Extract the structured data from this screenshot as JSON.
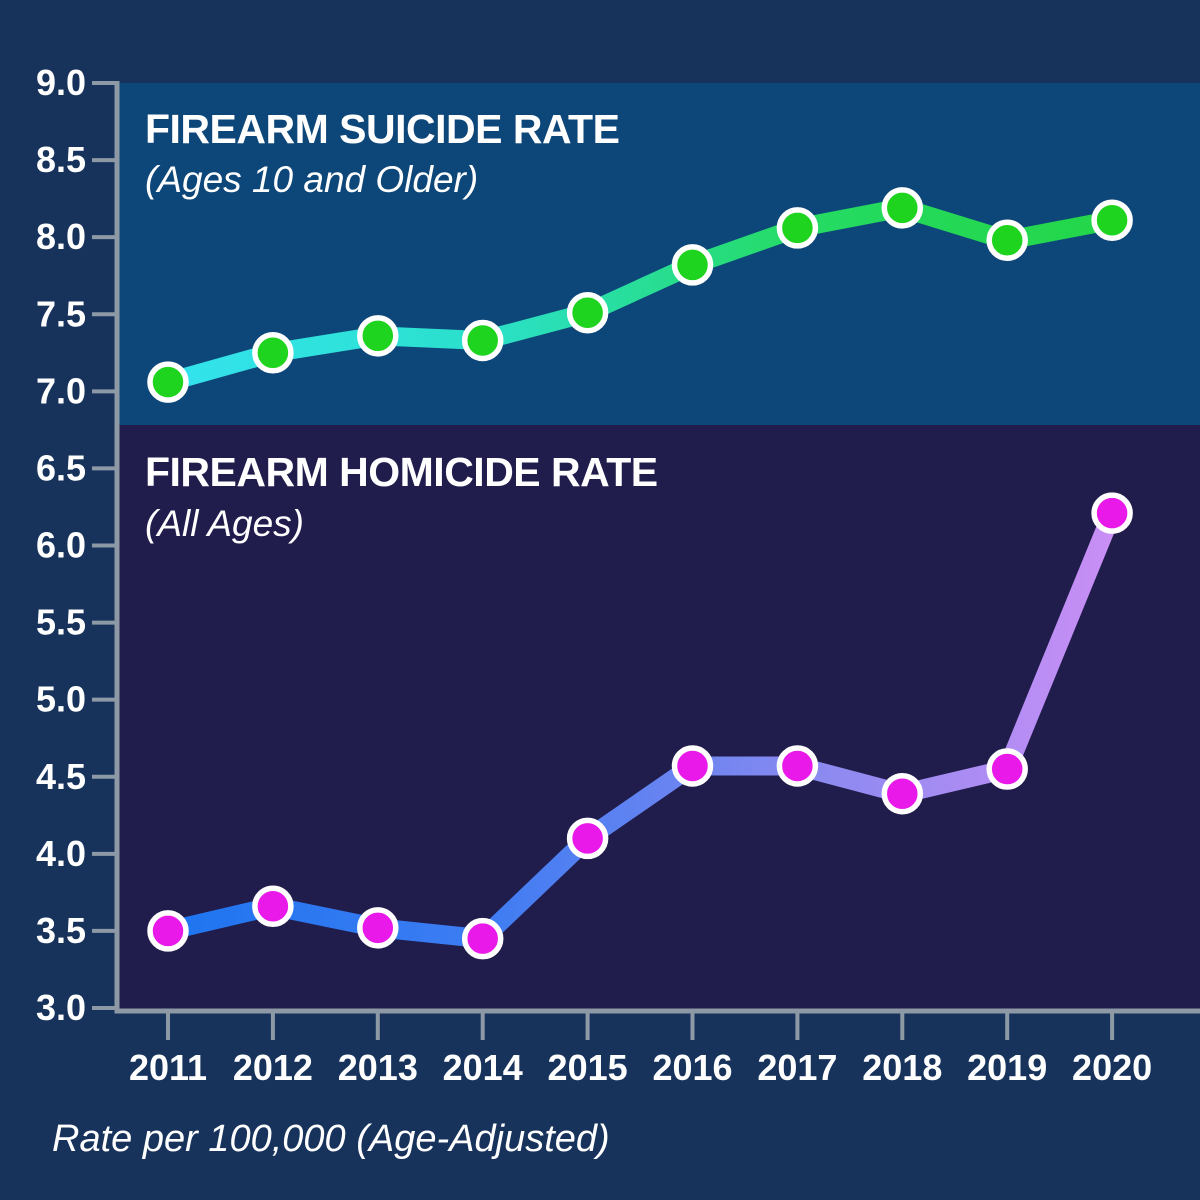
{
  "background_color": "#17335C",
  "chart_data": {
    "type": "line",
    "categories": [
      "2011",
      "2012",
      "2013",
      "2014",
      "2015",
      "2016",
      "2017",
      "2018",
      "2019",
      "2020"
    ],
    "series": [
      {
        "name": "FIREARM SUICIDE RATE",
        "subtitle": "(Ages 10 and Older)",
        "values": [
          7.06,
          7.25,
          7.36,
          7.33,
          7.51,
          7.82,
          8.06,
          8.19,
          7.98,
          8.11
        ],
        "marker_color": "#1ED41E",
        "line_gradient": [
          "#33E3EE",
          "#2BE0CB",
          "#25DB64",
          "#23D648"
        ],
        "panel_color": "#0D4678"
      },
      {
        "name": "FIREARM HOMICIDE RATE",
        "subtitle": "(All Ages)",
        "values": [
          3.5,
          3.66,
          3.52,
          3.45,
          4.1,
          4.57,
          4.57,
          4.39,
          4.55,
          6.21
        ],
        "marker_color": "#E919E9",
        "line_gradient": [
          "#1E75F0",
          "#3D7CF2",
          "#8689F0",
          "#C98FF5"
        ],
        "panel_color": "#201C4B"
      }
    ],
    "xlabel": "",
    "ylabel": "Rate per 100,000 (Age-Adjusted)",
    "ylim": [
      3.0,
      9.0
    ],
    "ytick_step": 0.5,
    "yticks": [
      "9.0",
      "8.5",
      "8.0",
      "7.5",
      "7.0",
      "6.5",
      "6.0",
      "5.5",
      "5.0",
      "4.5",
      "4.0",
      "3.5",
      "3.0"
    ],
    "axis_color": "#8E99A6",
    "tick_label_color": "#FFFFFF",
    "grid": false,
    "legend_position": "none-titles-inside-panels"
  }
}
